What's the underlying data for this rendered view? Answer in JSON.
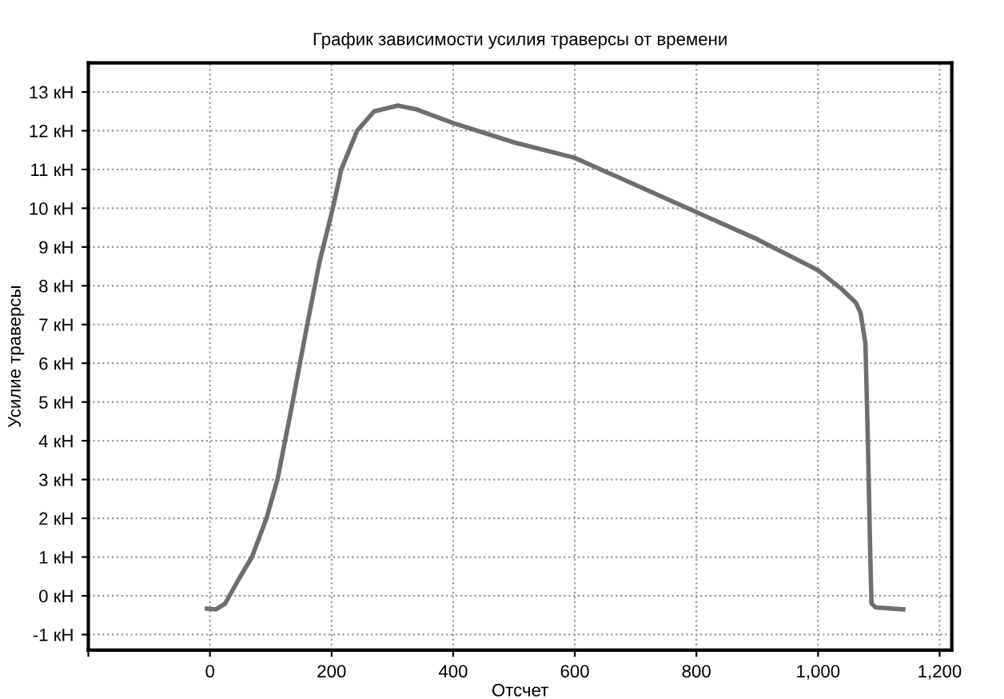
{
  "chart_data": {
    "type": "line",
    "title": "График зависимости усилия траверсы от времени",
    "xlabel": "Отсчет",
    "ylabel": "Усилие траверсы",
    "xlim": [
      -200,
      1220
    ],
    "ylim": [
      -1.4,
      13.75
    ],
    "xticks": [
      {
        "value": -200,
        "label": null
      },
      0,
      200,
      400,
      600,
      800,
      {
        "value": 1000,
        "label": "1,000"
      },
      {
        "value": 1200,
        "label": "1,200"
      }
    ],
    "yticks": [
      {
        "value": -1,
        "label": "-1 кН"
      },
      {
        "value": 0,
        "label": "0 кН"
      },
      {
        "value": 1,
        "label": "1 кН"
      },
      {
        "value": 2,
        "label": "2 кН"
      },
      {
        "value": 3,
        "label": "3 кН"
      },
      {
        "value": 4,
        "label": "4 кН"
      },
      {
        "value": 5,
        "label": "5 кН"
      },
      {
        "value": 6,
        "label": "6 кН"
      },
      {
        "value": 7,
        "label": "7 кН"
      },
      {
        "value": 8,
        "label": "8 кН"
      },
      {
        "value": 9,
        "label": "9 кН"
      },
      {
        "value": 10,
        "label": "10 кН"
      },
      {
        "value": 11,
        "label": "11 кН"
      },
      {
        "value": 12,
        "label": "12 кН"
      },
      {
        "value": 13,
        "label": "13 кН"
      }
    ],
    "grid": true,
    "legend": false,
    "marker": "none",
    "line_style": "solid",
    "series": [
      {
        "color": "#6e6e6e",
        "x": [
          -5,
          10,
          25,
          32,
          50,
          69,
          93,
          111,
          136,
          160,
          180,
          202,
          216,
          242,
          270,
          309,
          340,
          400,
          500,
          600,
          700,
          800,
          900,
          1000,
          1040,
          1062,
          1070,
          1078,
          1082,
          1086,
          1088,
          1095,
          1140
        ],
        "values": [
          -0.33,
          -0.35,
          -0.2,
          0,
          0.5,
          1,
          2,
          3,
          5,
          7,
          8.6,
          10,
          11,
          12,
          12.5,
          12.65,
          12.55,
          12.2,
          11.7,
          11.3,
          10.6,
          9.9,
          9.2,
          8.4,
          7.9,
          7.57,
          7.3,
          6.5,
          4,
          1,
          -0.2,
          -0.3,
          -0.35
        ]
      }
    ]
  }
}
